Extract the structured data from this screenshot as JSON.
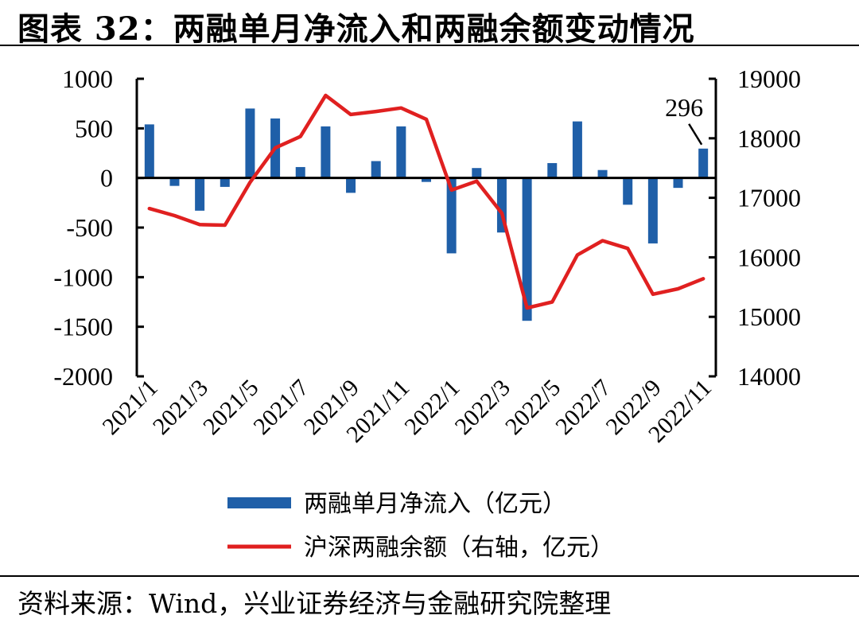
{
  "title": "图表 32：两融单月净流入和两融余额变动情况",
  "source": "资料来源：Wind，兴业证券经济与金融研究院整理",
  "chart_data": {
    "type": "bar+line",
    "categories": [
      "2021/1",
      "2021/2",
      "2021/3",
      "2021/4",
      "2021/5",
      "2021/6",
      "2021/7",
      "2021/8",
      "2021/9",
      "2021/10",
      "2021/11",
      "2021/12",
      "2022/1",
      "2022/2",
      "2022/3",
      "2022/4",
      "2022/5",
      "2022/6",
      "2022/7",
      "2022/8",
      "2022/9",
      "2022/10",
      "2022/11"
    ],
    "tick_labels": [
      "2021/1",
      "2021/3",
      "2021/5",
      "2021/7",
      "2021/9",
      "2021/11",
      "2022/1",
      "2022/3",
      "2022/5",
      "2022/7",
      "2022/9",
      "2022/11"
    ],
    "series": [
      {
        "name": "两融单月净流入（亿元）",
        "type": "bar",
        "axis": "left",
        "color": "#1f5fa8",
        "values": [
          540,
          -80,
          -330,
          -90,
          700,
          600,
          110,
          520,
          -150,
          170,
          520,
          -40,
          -760,
          100,
          -550,
          -1440,
          150,
          570,
          80,
          -270,
          -660,
          -100,
          296
        ]
      },
      {
        "name": "沪深两融余额（右轴，亿元）",
        "type": "line",
        "axis": "right",
        "color": "#e02020",
        "values": [
          16820,
          16700,
          16550,
          16540,
          17260,
          17840,
          18030,
          18720,
          18400,
          18450,
          18510,
          18320,
          17130,
          17280,
          16740,
          15150,
          15250,
          16040,
          16280,
          16150,
          15380,
          15470,
          15640
        ]
      }
    ],
    "y_left": {
      "min": -2000,
      "max": 1000,
      "ticks": [
        1000,
        500,
        0,
        -500,
        -1000,
        -1500,
        -2000
      ]
    },
    "y_right": {
      "min": 14000,
      "max": 19000,
      "ticks": [
        19000,
        18000,
        17000,
        16000,
        15000,
        14000
      ]
    },
    "annotation": {
      "text": "296",
      "category": "2022/11"
    },
    "legend_position": "bottom",
    "grid": false
  }
}
